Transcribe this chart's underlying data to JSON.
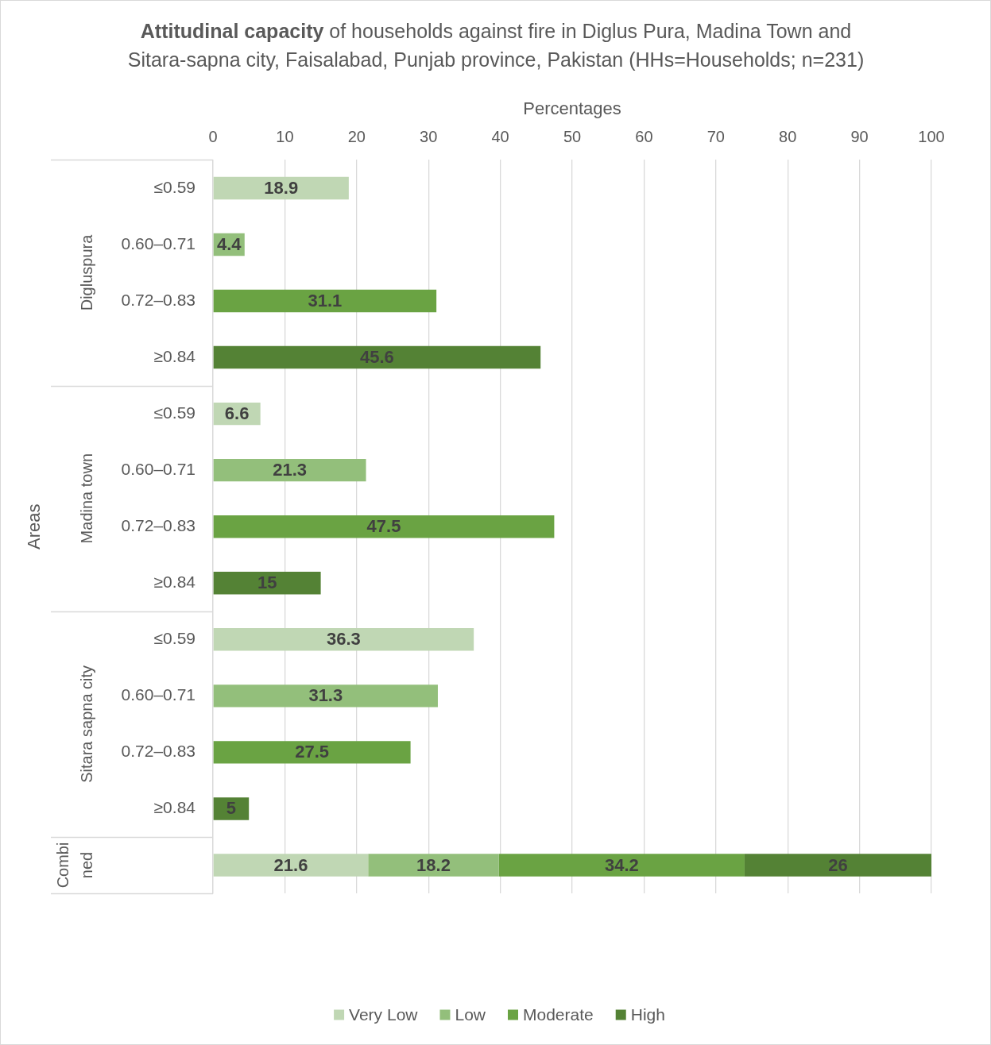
{
  "chart_data": {
    "type": "bar",
    "orientation": "horizontal",
    "stacked": true,
    "title": "Attitudinal capacity of households against fire in Diglus Pura, Madina Town and Sitara-sapna city, Faisalabad, Punjab province, Pakistan (HHs=Households; n=231)",
    "xlabel": "Percentages",
    "ylabel": "Areas",
    "categories": [
      "≤0.59",
      "0.60–0.71",
      "0.72–0.83",
      "≥0.84",
      "≤0.59",
      "0.60–0.71",
      "0.72–0.83",
      "≥0.84",
      "≤0.59",
      "0.60–0.71",
      "0.72–0.83",
      "≥0.84",
      null
    ],
    "annotations": [
      "Digluspura",
      "Madina town",
      "Sitara sapna city",
      "Combined"
    ],
    "series": [
      {
        "name": "Very Low",
        "color": "#c0d7b4",
        "values": [
          18.9,
          null,
          null,
          null,
          6.6,
          null,
          null,
          null,
          36.3,
          null,
          null,
          null,
          21.6
        ]
      },
      {
        "name": "Low",
        "color": "#93bf7b",
        "values": [
          null,
          4.4,
          null,
          null,
          null,
          21.3,
          null,
          null,
          null,
          31.3,
          null,
          null,
          18.2
        ]
      },
      {
        "name": "Moderate",
        "color": "#6aa343",
        "values": [
          null,
          null,
          31.1,
          null,
          null,
          null,
          47.5,
          null,
          null,
          null,
          27.5,
          null,
          34.2
        ]
      },
      {
        "name": "High",
        "color": "#548235",
        "values": [
          null,
          null,
          null,
          45.6,
          null,
          null,
          null,
          15,
          null,
          null,
          null,
          5,
          26
        ]
      }
    ],
    "xlim": [
      0,
      100
    ],
    "xticks": [
      0,
      10,
      20,
      30,
      40,
      50,
      60,
      70,
      80,
      90,
      100
    ],
    "grid": "x",
    "legend": "bottom",
    "data_labels": true
  }
}
